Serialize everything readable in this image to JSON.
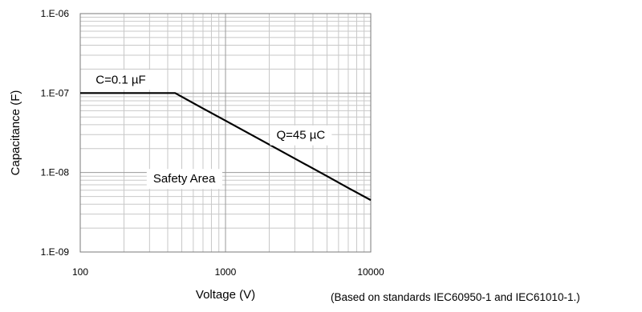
{
  "chart_data": {
    "type": "line",
    "x_scale": "log",
    "y_scale": "log",
    "xlim": [
      100,
      10000
    ],
    "ylim": [
      1e-09,
      1e-06
    ],
    "xlabel": "Voltage (V)",
    "ylabel": "Capacitance (F)",
    "x_ticks": [
      {
        "value": 100,
        "label": "100"
      },
      {
        "value": 1000,
        "label": "1000"
      },
      {
        "value": 10000,
        "label": "10000"
      }
    ],
    "y_ticks": [
      {
        "value": 1e-06,
        "label": "1.E-06"
      },
      {
        "value": 1e-07,
        "label": "1.E-07"
      },
      {
        "value": 1e-08,
        "label": "1.E-08"
      },
      {
        "value": 1e-09,
        "label": "1.E-09"
      }
    ],
    "grid": true,
    "series": [
      {
        "color": "#000000",
        "x": [
          100,
          450,
          700,
          1000,
          2000,
          3000,
          5000,
          7000,
          10000
        ],
        "y": [
          1e-07,
          1e-07,
          6.4e-08,
          4.5e-08,
          2.25e-08,
          1.5e-08,
          9e-09,
          6.4e-09,
          4.5e-09
        ]
      }
    ],
    "annotations": [
      {
        "text": "C=0.1 µF",
        "x": 190,
        "y": 1.45e-07
      },
      {
        "text": "Q=45 µC",
        "x": 3300,
        "y": 2.9e-08
      },
      {
        "text": "Safety Area",
        "x": 520,
        "y": 8.2e-09
      }
    ]
  },
  "footnote": "(Based on standards IEC60950-1 and IEC61010-1.)"
}
